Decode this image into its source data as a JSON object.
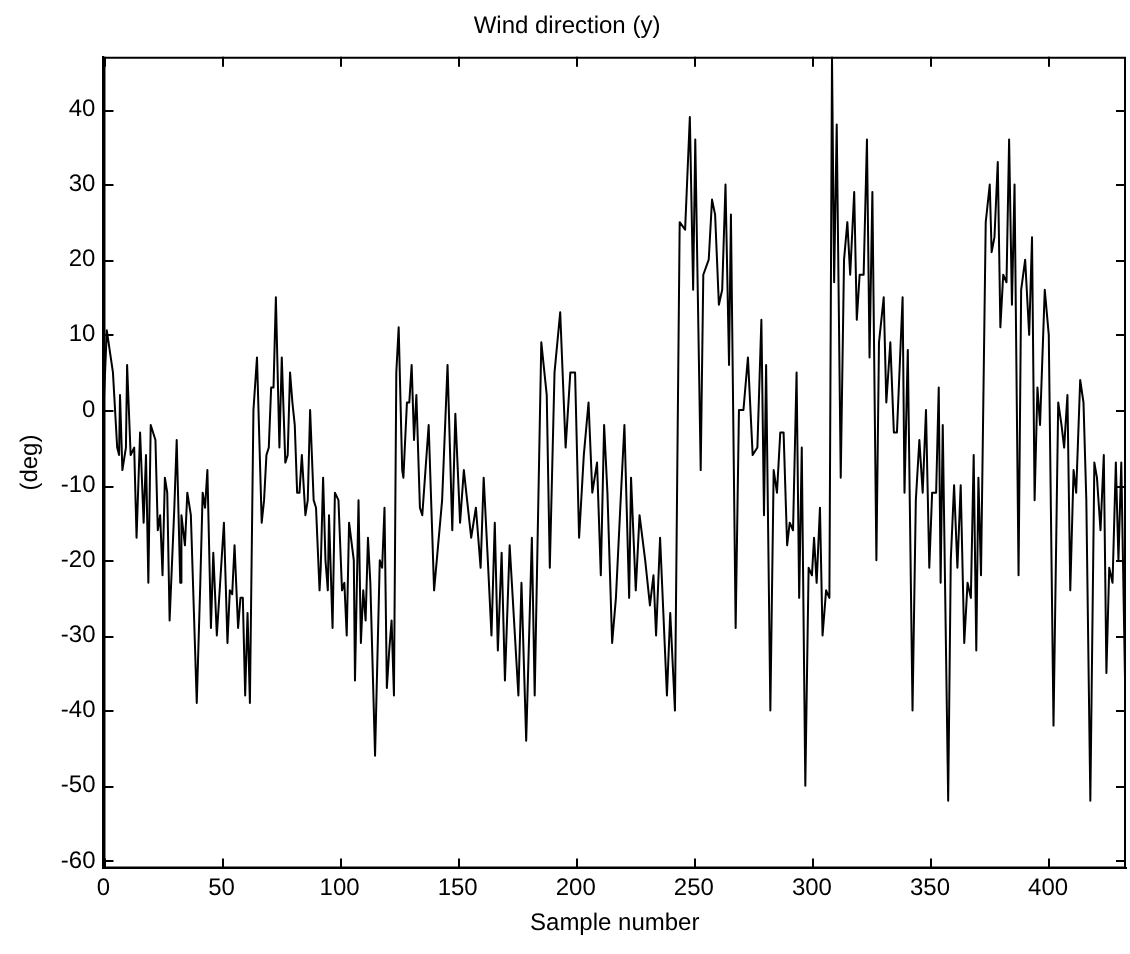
{
  "chart_data": {
    "type": "line",
    "title": "Wind direction (y)",
    "xlabel": "Sample number",
    "ylabel": "(deg)",
    "xlim": [
      0,
      433
    ],
    "ylim": [
      -61,
      47
    ],
    "xticks": [
      0,
      50,
      100,
      150,
      200,
      250,
      300,
      350,
      400
    ],
    "yticks": [
      -60,
      -50,
      -40,
      -30,
      -20,
      -10,
      0,
      10,
      20,
      30,
      40
    ],
    "grid": false,
    "legend": false,
    "marker": "none",
    "line_style": "solid",
    "series": [
      {
        "color": "#000000",
        "x": [
          0,
          1.4,
          4,
          5.8,
          6.6,
          7,
          8,
          9.5,
          10,
          11.5,
          13,
          14,
          15.5,
          17,
          18,
          19,
          20,
          22,
          23,
          24,
          25,
          26,
          27,
          28,
          30,
          31,
          32.5,
          33,
          34.5,
          35.5,
          37,
          39.5,
          41,
          42,
          43,
          44,
          45.5,
          46.5,
          48,
          50,
          51,
          52.5,
          53.5,
          54.5,
          55.5,
          57,
          58,
          59,
          60,
          61,
          62,
          63.5,
          65,
          67,
          68,
          69,
          70,
          71,
          72,
          73,
          74.5,
          75.5,
          77,
          78,
          79,
          80,
          81,
          82,
          83,
          84,
          85.5,
          86.5,
          87.5,
          89,
          90,
          91.5,
          92,
          93,
          94,
          95,
          95.5,
          97,
          98,
          99.5,
          101,
          102,
          103,
          104,
          106,
          106.5,
          108,
          109,
          110,
          111,
          112,
          113,
          115,
          117,
          118,
          119,
          120,
          121,
          122,
          123,
          124,
          125,
          126.5,
          127,
          128.5,
          129.5,
          130.5,
          131.5,
          132.5,
          134,
          135,
          137.7,
          140,
          143.4,
          145.7,
          147.7,
          149,
          151,
          152.6,
          155.7,
          157.7,
          159.7,
          161,
          162.6,
          164.3,
          165.7,
          167,
          168.6,
          170,
          172,
          175.7,
          177,
          179,
          181.4,
          182.6,
          185.4,
          187.7,
          189,
          191,
          193.4,
          195.7,
          197.7,
          199.7,
          201.4,
          203.4,
          205.4,
          207,
          209,
          210.6,
          212,
          213.4,
          215.4,
          217,
          219,
          220.6,
          222.6,
          223.4,
          225.4,
          227,
          229.4,
          231.4,
          232.9,
          234,
          235.7,
          238.6,
          240,
          242,
          244,
          246.3,
          248.3,
          249.7,
          250.6,
          252.9,
          254,
          256.3,
          257.7,
          259,
          260.6,
          262,
          263.4,
          264.9,
          265.7,
          267.7,
          269.1,
          271,
          272.9,
          274.9,
          276.9,
          278.6,
          279.7,
          280.6,
          282.4,
          283.8,
          285.2,
          286.6,
          288,
          289.5,
          290.6,
          292,
          293.5,
          294.6,
          295.7,
          297.2,
          298.6,
          300,
          300.9,
          302,
          303.4,
          304.5,
          306,
          307.4,
          308.5,
          309.4,
          310.5,
          312.2,
          313.6,
          315,
          316.2,
          317.9,
          319,
          320.2,
          321.9,
          323.3,
          324.4,
          325.6,
          327.3,
          328.4,
          330.4,
          331.5,
          333.2,
          334.7,
          336,
          338.4,
          339.2,
          340.6,
          342.6,
          344,
          345.5,
          346.9,
          348.3,
          349.7,
          350.9,
          352.6,
          353.7,
          354.5,
          355.4,
          357.7,
          358.8,
          360.2,
          361.6,
          363,
          364.5,
          365.9,
          367.3,
          368.5,
          369.6,
          370.5,
          371.6,
          373.6,
          375.3,
          376.1,
          377.3,
          378.7,
          379.8,
          381,
          382.4,
          383.5,
          384.7,
          385.8,
          387.5,
          388.6,
          390.3,
          392,
          393.2,
          394.3,
          395.5,
          396.6,
          398.6,
          400.3,
          402.3,
          404.3,
          405.7,
          406.8,
          408.2,
          409.4,
          410.8,
          411.9,
          413.6,
          415,
          416.2,
          417.9,
          419.6,
          420.7,
          422.2,
          423.6,
          424.7,
          425.9,
          427.3,
          428.7,
          429.8,
          431,
          432.7
        ],
        "values": [
          0,
          10.6,
          5,
          -5,
          -6,
          2,
          -8,
          -5,
          6,
          -6,
          -5,
          -17,
          -3,
          -15,
          -6,
          -23,
          -2,
          -4,
          -16,
          -14,
          -22,
          -9,
          -11,
          -28,
          -13,
          -4,
          -23,
          -14,
          -18,
          -11,
          -14,
          -39,
          -23,
          -11,
          -13,
          -8,
          -29,
          -19,
          -30,
          -20,
          -15,
          -31,
          -24,
          -24.5,
          -18,
          -29,
          -25,
          -25,
          -38,
          -27,
          -39,
          0,
          7,
          -15,
          -12,
          -6,
          -5,
          3,
          3,
          15,
          -5,
          7,
          -7,
          -6,
          5,
          1,
          -2,
          -11,
          -11,
          -6,
          -14,
          -12,
          0,
          -12,
          -13,
          -24,
          -21,
          -9,
          -20,
          -24,
          -14,
          -29,
          -11,
          -12,
          -24,
          -23,
          -30,
          -15,
          -20,
          -36,
          -12,
          -31,
          -24,
          -28,
          -17,
          -23,
          -46,
          -20,
          -21,
          -13,
          -37,
          -32,
          -28,
          -38,
          5,
          11,
          -8,
          -9,
          1,
          1,
          6,
          -4,
          2,
          -13,
          -14,
          -2,
          -24,
          -12,
          6,
          -16,
          -0.5,
          -15,
          -8,
          -17,
          -13,
          -21,
          -9,
          -19,
          -30,
          -15,
          -32,
          -19,
          -36,
          -18,
          -38,
          -23,
          -44,
          -17,
          -38,
          9,
          2,
          -21,
          5,
          13,
          -5,
          5,
          5,
          -17,
          -6,
          1,
          -11,
          -7,
          -22,
          -2,
          -11,
          -31,
          -25,
          -12,
          -2,
          -25,
          -9,
          -24,
          -14,
          -20,
          -26,
          -22,
          -30,
          -17,
          -38,
          -27,
          -40,
          25,
          24,
          39,
          16,
          36,
          -8,
          18,
          20,
          28,
          26,
          14,
          16,
          30,
          6,
          26,
          -29,
          0,
          0,
          7,
          -6,
          -5,
          12,
          -14,
          6,
          -40,
          -8,
          -11,
          -3,
          -3,
          -18,
          -15,
          -16,
          5,
          -25,
          -5,
          -50,
          -21,
          -22,
          -17,
          -23,
          -13,
          -30,
          -24,
          -25,
          47,
          17,
          38,
          -9,
          20,
          25,
          18,
          29,
          12,
          18,
          18,
          36,
          7,
          29,
          -20,
          9,
          15,
          1,
          9,
          -3,
          -3,
          15,
          -11,
          8,
          -40,
          -12,
          -4,
          -11,
          0,
          -21,
          -11,
          -11,
          3,
          -23,
          -2,
          -52,
          -20,
          -10,
          -21,
          -10,
          -31,
          -23,
          -25,
          -6,
          -32,
          -9,
          -22,
          25,
          30,
          21,
          23,
          33,
          11,
          18,
          17,
          36,
          14,
          30,
          -22,
          16,
          20,
          10,
          23,
          -12,
          3,
          -2,
          16,
          10,
          -42,
          1,
          -2,
          -5,
          2,
          -24,
          -8,
          -11,
          4,
          1,
          -12,
          -52,
          -7,
          -9,
          -16,
          -6,
          -35,
          -21,
          -23,
          -7,
          -20,
          -7,
          -38
        ]
      }
    ]
  }
}
